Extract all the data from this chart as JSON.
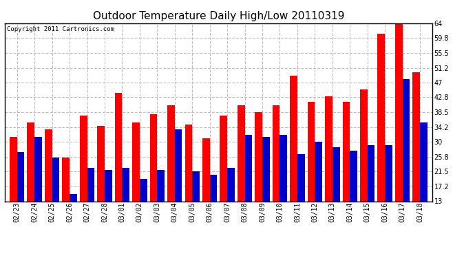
{
  "title": "Outdoor Temperature Daily High/Low 20110319",
  "copyright": "Copyright 2011 Cartronics.com",
  "dates": [
    "02/23",
    "02/24",
    "02/25",
    "02/26",
    "02/27",
    "02/28",
    "03/01",
    "03/02",
    "03/03",
    "03/04",
    "03/05",
    "03/06",
    "03/07",
    "03/08",
    "03/09",
    "03/10",
    "03/11",
    "03/12",
    "03/13",
    "03/14",
    "03/15",
    "03/16",
    "03/17",
    "03/18"
  ],
  "highs": [
    31.5,
    35.5,
    33.5,
    25.5,
    37.5,
    34.5,
    44.0,
    35.5,
    38.0,
    40.5,
    35.0,
    31.0,
    37.5,
    40.5,
    38.5,
    40.5,
    49.0,
    41.5,
    43.0,
    41.5,
    45.0,
    61.0,
    64.5,
    50.0
  ],
  "lows": [
    27.0,
    31.5,
    25.5,
    15.0,
    22.5,
    22.0,
    22.5,
    19.5,
    22.0,
    33.5,
    21.5,
    20.5,
    22.5,
    32.0,
    31.5,
    32.0,
    26.5,
    30.0,
    28.5,
    27.5,
    29.0,
    29.0,
    48.0,
    35.5
  ],
  "ylim": [
    13.0,
    64.0
  ],
  "yticks": [
    13.0,
    17.2,
    21.5,
    25.8,
    30.0,
    34.2,
    38.5,
    42.8,
    47.0,
    51.2,
    55.5,
    59.8,
    64.0
  ],
  "high_color": "#ff0000",
  "low_color": "#0000cc",
  "background_color": "#ffffff",
  "grid_color": "#c0c0c0",
  "title_fontsize": 11,
  "tick_fontsize": 7,
  "copyright_fontsize": 6.5
}
